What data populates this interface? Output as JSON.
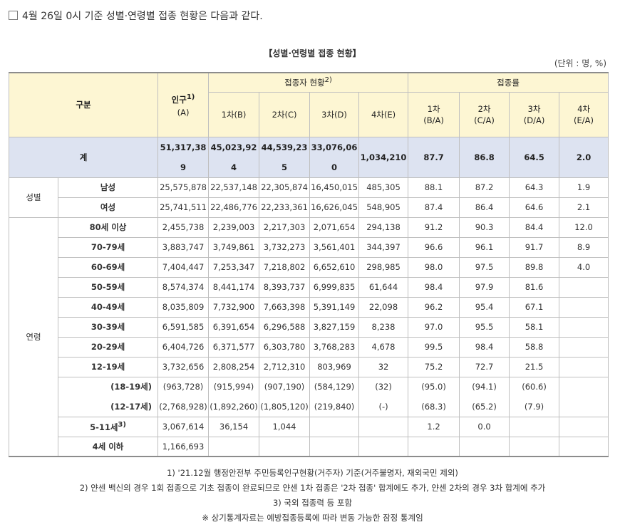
{
  "heading": "4월 26일 0시 기준 성별·연령별 접종 현황은 다음과 같다.",
  "table_title": "【성별·연령별 접종 현황】",
  "unit": "(단위 : 명, %)",
  "header": {
    "category": "구분",
    "population": "인구",
    "population_sup": "1)",
    "population_code": "(A)",
    "vaccinated": "접종자 현황",
    "vaccinated_sup": "2)",
    "rate": "접종률",
    "cols": [
      {
        "label": "1차(B)"
      },
      {
        "label": "2차(C)"
      },
      {
        "label": "3차(D)"
      },
      {
        "label": "4차(E)"
      }
    ],
    "rate_cols": [
      {
        "label": "1차",
        "code": "(B/A)"
      },
      {
        "label": "2차",
        "code": "(C/A)"
      },
      {
        "label": "3차",
        "code": "(D/A)"
      },
      {
        "label": "4차",
        "code": "(E/A)"
      }
    ]
  },
  "total": {
    "label": "계",
    "values": [
      "51,317,389",
      "45,023,924",
      "44,539,235",
      "33,076,060",
      "1,034,210",
      "87.7",
      "86.8",
      "64.5",
      "2.0"
    ]
  },
  "sex": {
    "group": "성별",
    "rows": [
      {
        "label": "남성",
        "values": [
          "25,575,878",
          "22,537,148",
          "22,305,874",
          "16,450,015",
          "485,305",
          "88.1",
          "87.2",
          "64.3",
          "1.9"
        ]
      },
      {
        "label": "여성",
        "values": [
          "25,741,511",
          "22,486,776",
          "22,233,361",
          "16,626,045",
          "548,905",
          "87.4",
          "86.4",
          "64.6",
          "2.1"
        ]
      }
    ]
  },
  "age": {
    "group": "연령",
    "rows": [
      {
        "label": "80세 이상",
        "values": [
          "2,455,738",
          "2,239,003",
          "2,217,303",
          "2,071,654",
          "294,138",
          "91.2",
          "90.3",
          "84.4",
          "12.0"
        ]
      },
      {
        "label": "70-79세",
        "values": [
          "3,883,747",
          "3,749,861",
          "3,732,273",
          "3,561,401",
          "344,397",
          "96.6",
          "96.1",
          "91.7",
          "8.9"
        ]
      },
      {
        "label": "60-69세",
        "values": [
          "7,404,447",
          "7,253,347",
          "7,218,802",
          "6,652,610",
          "298,985",
          "98.0",
          "97.5",
          "89.8",
          "4.0"
        ]
      },
      {
        "label": "50-59세",
        "values": [
          "8,574,374",
          "8,441,174",
          "8,393,737",
          "6,999,835",
          "61,644",
          "98.4",
          "97.9",
          "81.6",
          ""
        ]
      },
      {
        "label": "40-49세",
        "values": [
          "8,035,809",
          "7,732,900",
          "7,663,398",
          "5,391,149",
          "22,098",
          "96.2",
          "95.4",
          "67.1",
          ""
        ]
      },
      {
        "label": "30-39세",
        "values": [
          "6,591,585",
          "6,391,654",
          "6,296,588",
          "3,827,159",
          "8,238",
          "97.0",
          "95.5",
          "58.1",
          ""
        ]
      },
      {
        "label": "20-29세",
        "values": [
          "6,404,726",
          "6,371,577",
          "6,303,780",
          "3,768,283",
          "4,678",
          "99.5",
          "98.4",
          "58.8",
          ""
        ]
      },
      {
        "label": "12-19세",
        "values": [
          "3,732,656",
          "2,808,254",
          "2,712,310",
          "803,969",
          "32",
          "75.2",
          "72.7",
          "21.5",
          ""
        ]
      }
    ],
    "sub_rows": [
      {
        "label": "(18-19세)",
        "values": [
          "(963,728)",
          "(915,994)",
          "(907,190)",
          "(584,129)",
          "(32)",
          "(95.0)",
          "(94.1)",
          "(60.6)",
          ""
        ]
      },
      {
        "label": "(12-17세)",
        "values": [
          "(2,768,928)",
          "(1,892,260)",
          "(1,805,120)",
          "(219,840)",
          "(-)",
          "(68.3)",
          "(65.2)",
          "(7.9)",
          ""
        ]
      }
    ],
    "child": {
      "label": "5-11세",
      "sup": "3)",
      "values": [
        "3,067,614",
        "36,154",
        "1,044",
        "",
        "",
        "1.2",
        "0.0",
        "",
        ""
      ]
    },
    "infant": {
      "label": "4세 이하",
      "values": [
        "1,166,693",
        "",
        "",
        "",
        "",
        "",
        "",
        "",
        ""
      ]
    }
  },
  "notes": [
    "1) '21.12월 행정안전부 주민등록인구현황(거주자) 기준(거주불명자, 재외국민 제외)",
    "2) 얀센 백신의 경우 1회 접종으로 기초 접종이 완료되므로 얀센 1차 접종은 '2차 접종' 합계에도 추가, 얀센 2차의 경우 3차 합계에 추가",
    "3) 국외 접종력 등 포함",
    "※ 상기통계자료는 예방접종등록에 따라 변동 가능한 잠정 통계임"
  ]
}
